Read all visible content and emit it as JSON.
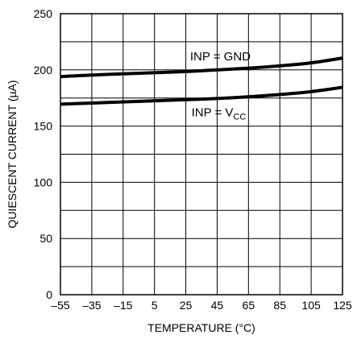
{
  "chart_data": {
    "type": "line",
    "xlabel": "TEMPERATURE (°C)",
    "ylabel": "QUIESCENT CURRENT (µA)",
    "xlim": [
      -55,
      125
    ],
    "ylim": [
      0,
      250
    ],
    "x_ticks": [
      -55,
      -35,
      -15,
      5,
      25,
      45,
      65,
      85,
      105,
      125
    ],
    "y_ticks": [
      0,
      50,
      100,
      150,
      200,
      250
    ],
    "x_tick_labels": [
      "–55",
      "–35",
      "–15",
      "5",
      "25",
      "45",
      "65",
      "85",
      "105",
      "125"
    ],
    "y_tick_labels": [
      "0",
      "50",
      "100",
      "150",
      "200",
      "250"
    ],
    "grid": true,
    "series": [
      {
        "name": "INP = GND",
        "label_main": "INP = GND",
        "label_sub": "",
        "x": [
          -55,
          -35,
          -15,
          5,
          25,
          45,
          65,
          85,
          105,
          125
        ],
        "values": [
          194,
          195.5,
          196.5,
          197.5,
          198.5,
          200,
          201.5,
          203.5,
          206,
          210.5
        ]
      },
      {
        "name": "INP = VCC",
        "label_main": "INP = V",
        "label_sub": "CC",
        "x": [
          -55,
          -35,
          -15,
          5,
          25,
          45,
          65,
          85,
          105,
          125
        ],
        "values": [
          169.5,
          170.5,
          171.5,
          172.5,
          173.5,
          174.5,
          176,
          178,
          180.5,
          184.5
        ]
      }
    ],
    "colors": {
      "line": "#000000",
      "grid": "#000000",
      "background": "#ffffff"
    }
  }
}
